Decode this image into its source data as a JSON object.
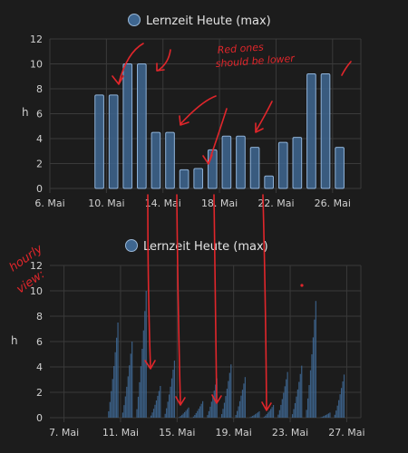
{
  "chart_data": [
    {
      "type": "bar",
      "legend": "Lernzeit Heute (max)",
      "ylabel": "h",
      "ylim": [
        0,
        12
      ],
      "yticks": [
        0,
        2,
        4,
        6,
        8,
        10,
        12
      ],
      "xticks": [
        "6. Mai",
        "10. Mai",
        "14. Mai",
        "18. Mai",
        "22. Mai",
        "26. Mai"
      ],
      "x_start_day": 6,
      "x_end_day": 28,
      "grid": true,
      "color": "#3e6690",
      "series": [
        {
          "values": [
            {
              "day": 9,
              "value": 7.5
            },
            {
              "day": 10,
              "value": 7.5
            },
            {
              "day": 11,
              "value": 10
            },
            {
              "day": 12,
              "value": 10
            },
            {
              "day": 13,
              "value": 4.5
            },
            {
              "day": 14,
              "value": 4.5
            },
            {
              "day": 15,
              "value": 1.5
            },
            {
              "day": 16,
              "value": 1.6
            },
            {
              "day": 17,
              "value": 3.1
            },
            {
              "day": 18,
              "value": 4.2
            },
            {
              "day": 19,
              "value": 4.2
            },
            {
              "day": 20,
              "value": 3.3
            },
            {
              "day": 21,
              "value": 1
            },
            {
              "day": 22,
              "value": 3.7
            },
            {
              "day": 23,
              "value": 4.1
            },
            {
              "day": 24,
              "value": 9.2
            },
            {
              "day": 25,
              "value": 9.2
            },
            {
              "day": 26,
              "value": 3.3
            }
          ]
        }
      ]
    },
    {
      "type": "bar",
      "legend": "Lernzeit Heute (max)",
      "ylabel": "h",
      "ylim": [
        0,
        12
      ],
      "yticks": [
        0,
        2,
        4,
        6,
        8,
        10,
        12
      ],
      "xticks": [
        "7. Mai",
        "11. Mai",
        "15. Mai",
        "19. Mai",
        "23. Mai",
        "27. Mai"
      ],
      "x_start_day": 6,
      "x_end_day": 28,
      "grid": true,
      "color": "#3e6690",
      "hourly_peaks": [
        {
          "day": 10,
          "value": 7.5
        },
        {
          "day": 11,
          "value": 6.0
        },
        {
          "day": 12,
          "value": 10
        },
        {
          "day": 13,
          "value": 2.5
        },
        {
          "day": 14,
          "value": 4.5
        },
        {
          "day": 15,
          "value": 0.8
        },
        {
          "day": 16,
          "value": 1.3
        },
        {
          "day": 17,
          "value": 3.1
        },
        {
          "day": 18,
          "value": 4.2
        },
        {
          "day": 19,
          "value": 3.2
        },
        {
          "day": 20,
          "value": 0.5
        },
        {
          "day": 21,
          "value": 1.0
        },
        {
          "day": 22,
          "value": 3.6
        },
        {
          "day": 23,
          "value": 4.1
        },
        {
          "day": 24,
          "value": 9.2
        },
        {
          "day": 25,
          "value": 0.4
        },
        {
          "day": 26,
          "value": 3.4
        }
      ]
    }
  ],
  "annotations": {
    "note_top": [
      "Red ones",
      "should be lower"
    ],
    "note_side": [
      "hourly",
      "view:"
    ],
    "color": "#e0262b"
  }
}
